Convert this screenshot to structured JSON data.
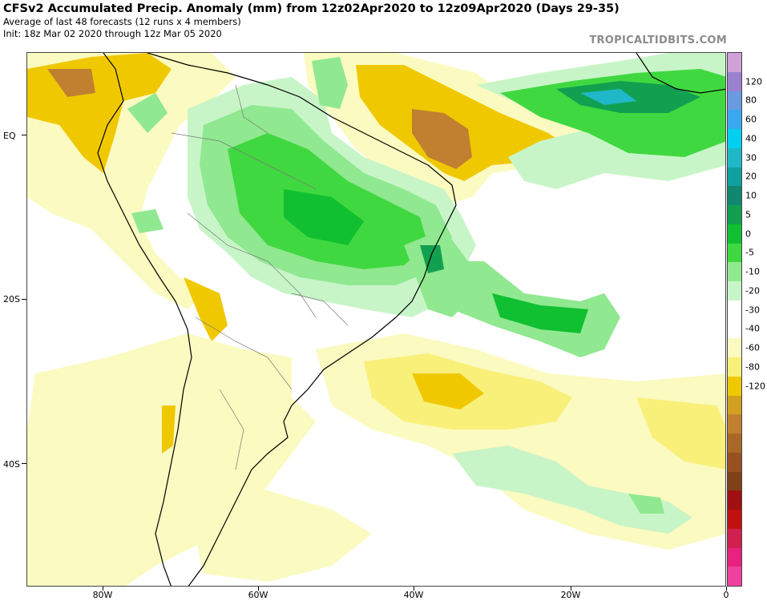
{
  "header": {
    "title": "CFSv2 Accumulated Precip. Anomaly (mm) from 12z02Apr2020 to 12z09Apr2020 (Days 29-35)",
    "subtitle": "Average of last 48 forecasts (12 runs x 4 members)",
    "init": "Init: 18z Mar 02 2020 through 12z Mar 05 2020",
    "brand": "TROPICALTIDBITS.COM"
  },
  "axes": {
    "lat_labels": [
      "EQ",
      "20S",
      "40S"
    ],
    "lon_labels": [
      "80W",
      "60W",
      "40W",
      "20W",
      "0"
    ]
  },
  "colorbar": {
    "labels": [
      "120",
      "80",
      "60",
      "40",
      "30",
      "20",
      "10",
      "5",
      "0",
      "-5",
      "-10",
      "-20",
      "-30",
      "-40",
      "-60",
      "-80",
      "-120"
    ],
    "colors": [
      "#d0a0d8",
      "#9a82d0",
      "#6a9ae0",
      "#3aa8f0",
      "#00d0f0",
      "#20b8c8",
      "#10a0a0",
      "#108870",
      "#10a050",
      "#10c030",
      "#40d840",
      "#90e890",
      "#c8f5c8",
      "#ffffff",
      "#ffffff",
      "#fbfac0",
      "#f9f07a",
      "#f0c800",
      "#d4a020",
      "#c08030",
      "#a86828",
      "#985020",
      "#804018",
      "#a01010",
      "#c01010",
      "#d02050",
      "#e82080",
      "#f040a0"
    ]
  },
  "map_regions": {
    "wet_north_brazil": "wet anomaly",
    "wet_east_brazil_coast": "wet anomaly",
    "wet_gulf_of_guinea": "strong wet anomaly",
    "wet_south_atlantic_band": "wet anomaly",
    "dry_equatorial_atlantic": "dry anomaly",
    "dry_colombia_venezuela": "dry anomaly",
    "dry_south_atlantic": "dry anomaly",
    "dry_andes": "dry anomaly",
    "dry_argentina": "slight dry anomaly"
  }
}
